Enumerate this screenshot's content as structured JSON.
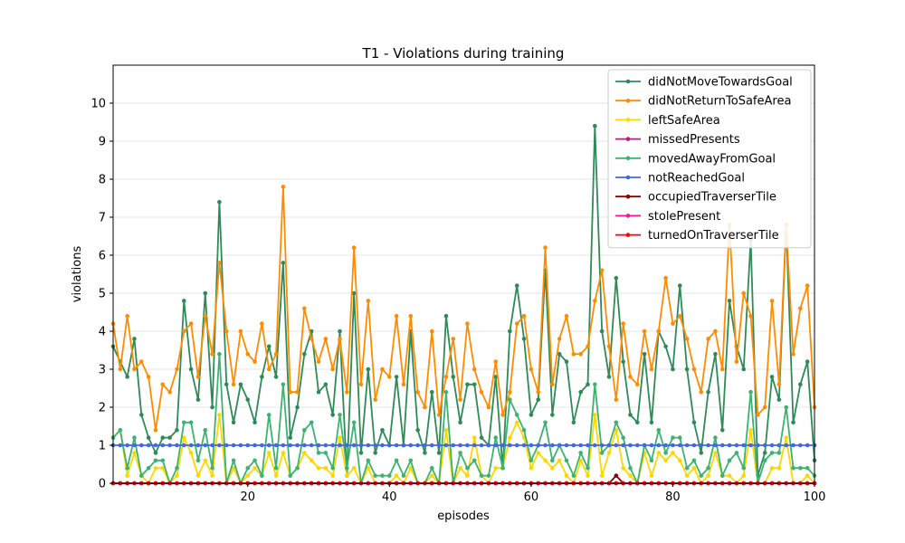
{
  "chart_data": {
    "type": "line",
    "title": "T1 - Violations during training",
    "xlabel": "episodes",
    "ylabel": "violations",
    "xlim": [
      1,
      100
    ],
    "ylim": [
      0,
      11
    ],
    "xticks": [
      20,
      40,
      60,
      80,
      100
    ],
    "yticks": [
      0,
      1,
      2,
      3,
      4,
      5,
      6,
      7,
      8,
      9,
      10
    ],
    "grid": "horizontal",
    "legend_position": "top-right",
    "x": [
      1,
      2,
      3,
      4,
      5,
      6,
      7,
      8,
      9,
      10,
      11,
      12,
      13,
      14,
      15,
      16,
      17,
      18,
      19,
      20,
      21,
      22,
      23,
      24,
      25,
      26,
      27,
      28,
      29,
      30,
      31,
      32,
      33,
      34,
      35,
      36,
      37,
      38,
      39,
      40,
      41,
      42,
      43,
      44,
      45,
      46,
      47,
      48,
      49,
      50,
      51,
      52,
      53,
      54,
      55,
      56,
      57,
      58,
      59,
      60,
      61,
      62,
      63,
      64,
      65,
      66,
      67,
      68,
      69,
      70,
      71,
      72,
      73,
      74,
      75,
      76,
      77,
      78,
      79,
      80,
      81,
      82,
      83,
      84,
      85,
      86,
      87,
      88,
      89,
      90,
      91,
      92,
      93,
      94,
      95,
      96,
      97,
      98,
      99,
      100
    ],
    "series": [
      {
        "name": "didNotMoveTowardsGoal",
        "color": "#2e8b57",
        "values": [
          3.6,
          3.2,
          2.8,
          3.8,
          1.8,
          1.2,
          0.8,
          1.2,
          1.2,
          1.4,
          4.8,
          3.0,
          2.2,
          5.0,
          2.0,
          7.4,
          2.6,
          1.6,
          2.6,
          2.2,
          1.6,
          2.8,
          3.6,
          2.8,
          5.8,
          1.2,
          2.0,
          3.4,
          4.0,
          2.4,
          2.6,
          1.8,
          4.0,
          0.2,
          5.0,
          0.8,
          3.0,
          0.8,
          1.4,
          1.0,
          2.8,
          1.0,
          4.0,
          1.4,
          0.8,
          2.4,
          0.8,
          4.4,
          2.8,
          1.6,
          2.6,
          2.6,
          1.2,
          1.0,
          2.8,
          0.4,
          4.0,
          5.2,
          3.8,
          1.8,
          2.2,
          5.6,
          1.8,
          3.4,
          3.2,
          1.6,
          2.4,
          2.6,
          9.4,
          4.0,
          2.8,
          5.4,
          3.2,
          1.8,
          1.6,
          3.4,
          1.6,
          4.0,
          3.6,
          3.0,
          5.2,
          3.0,
          1.6,
          0.8,
          2.4,
          3.4,
          1.4,
          4.8,
          3.6,
          3.0,
          6.4,
          0.2,
          0.8,
          2.8,
          2.2,
          6.8,
          1.6,
          2.6,
          3.2,
          0.6
        ]
      },
      {
        "name": "didNotReturnToSafeArea",
        "color": "#ff8c00",
        "values": [
          4.2,
          3.0,
          4.4,
          3.0,
          3.2,
          2.8,
          1.4,
          2.6,
          2.4,
          3.0,
          4.0,
          4.2,
          2.8,
          4.4,
          3.4,
          5.8,
          4.0,
          2.6,
          4.0,
          3.4,
          3.2,
          4.2,
          3.0,
          3.4,
          7.8,
          2.4,
          2.4,
          4.6,
          3.8,
          3.2,
          3.8,
          3.0,
          3.8,
          2.4,
          6.2,
          2.6,
          4.8,
          2.2,
          3.0,
          2.8,
          4.4,
          2.6,
          4.4,
          2.4,
          2.0,
          4.0,
          1.8,
          2.8,
          3.8,
          2.2,
          4.2,
          3.0,
          2.4,
          2.0,
          3.2,
          1.8,
          2.4,
          4.2,
          4.4,
          3.0,
          2.4,
          6.2,
          2.6,
          3.8,
          4.4,
          3.4,
          3.4,
          3.6,
          4.8,
          5.6,
          3.6,
          2.2,
          4.2,
          2.8,
          2.6,
          4.0,
          3.0,
          4.0,
          5.4,
          4.2,
          4.4,
          3.8,
          3.0,
          2.4,
          3.8,
          4.0,
          3.0,
          6.8,
          3.2,
          5.0,
          4.4,
          1.8,
          2.0,
          4.8,
          2.6,
          6.8,
          3.4,
          4.6,
          5.2,
          2.0
        ]
      },
      {
        "name": "leftSafeArea",
        "color": "#ffd700",
        "values": [
          1.2,
          1.4,
          0.2,
          0.8,
          0.2,
          0.0,
          0.4,
          0.4,
          0.0,
          0.2,
          1.2,
          0.8,
          0.2,
          0.6,
          0.2,
          1.8,
          0.0,
          0.4,
          0.0,
          0.2,
          0.4,
          0.2,
          0.8,
          0.2,
          0.8,
          0.2,
          0.4,
          0.8,
          0.6,
          0.4,
          0.4,
          0.2,
          1.2,
          0.2,
          0.4,
          0.0,
          0.4,
          0.0,
          0.0,
          0.0,
          0.2,
          0.0,
          0.4,
          0.0,
          0.0,
          0.2,
          0.0,
          1.4,
          0.0,
          0.4,
          0.2,
          1.2,
          0.2,
          0.0,
          0.4,
          0.4,
          1.2,
          1.6,
          1.2,
          0.4,
          0.8,
          0.6,
          0.4,
          0.6,
          0.2,
          0.0,
          0.6,
          0.2,
          1.8,
          0.2,
          0.8,
          1.4,
          0.4,
          0.2,
          0.0,
          0.8,
          0.2,
          0.8,
          0.6,
          0.8,
          0.6,
          0.2,
          0.4,
          0.0,
          0.2,
          0.8,
          0.2,
          0.2,
          0.0,
          0.2,
          1.4,
          0.0,
          0.0,
          0.4,
          0.4,
          1.2,
          0.0,
          0.0,
          0.2,
          0.0
        ]
      },
      {
        "name": "missedPresents",
        "color": "#c71585",
        "values": [
          0,
          0,
          0,
          0,
          0,
          0,
          0,
          0,
          0,
          0,
          0,
          0,
          0,
          0,
          0,
          0,
          0,
          0,
          0,
          0,
          0,
          0,
          0,
          0,
          0,
          0,
          0,
          0,
          0,
          0,
          0,
          0,
          0,
          0,
          0,
          0,
          0,
          0,
          0,
          0,
          0,
          0,
          0,
          0,
          0,
          0,
          0,
          0,
          0,
          0,
          0,
          0,
          0,
          0,
          0,
          0,
          0,
          0,
          0,
          0,
          0,
          0,
          0,
          0,
          0,
          0,
          0,
          0,
          0,
          0,
          0,
          0,
          0,
          0,
          0,
          0,
          0,
          0,
          0,
          0,
          0,
          0,
          0,
          0,
          0,
          0,
          0,
          0,
          0,
          0,
          0,
          0,
          0,
          0,
          0,
          0,
          0,
          0,
          0,
          0
        ]
      },
      {
        "name": "movedAwayFromGoal",
        "color": "#3cb371",
        "values": [
          1.2,
          1.4,
          0.4,
          1.2,
          0.2,
          0.4,
          0.6,
          0.6,
          0.0,
          0.4,
          1.6,
          1.6,
          0.6,
          1.4,
          0.4,
          3.4,
          0.0,
          0.6,
          0.0,
          0.4,
          0.6,
          0.2,
          1.8,
          0.4,
          2.6,
          0.2,
          0.4,
          1.4,
          1.6,
          0.8,
          0.8,
          0.4,
          1.8,
          0.4,
          1.6,
          0.0,
          0.6,
          0.2,
          0.2,
          0.2,
          0.6,
          0.2,
          0.6,
          0.0,
          0.0,
          0.4,
          0.0,
          2.4,
          0.0,
          0.8,
          0.4,
          0.6,
          0.2,
          0.2,
          1.2,
          0.4,
          2.2,
          1.8,
          1.4,
          0.6,
          1.0,
          1.6,
          0.6,
          1.0,
          0.6,
          0.2,
          0.8,
          0.4,
          2.6,
          0.8,
          1.0,
          1.6,
          1.2,
          0.4,
          0.0,
          1.0,
          0.6,
          1.4,
          0.8,
          1.2,
          1.2,
          0.4,
          0.6,
          0.2,
          0.4,
          1.2,
          0.2,
          0.6,
          0.8,
          0.4,
          2.4,
          0.0,
          0.6,
          0.8,
          0.8,
          2.0,
          0.4,
          0.4,
          0.4,
          0.2
        ]
      },
      {
        "name": "notReachedGoal",
        "color": "#4169e1",
        "values": [
          1,
          1,
          1,
          1,
          1,
          1,
          1,
          1,
          1,
          1,
          1,
          1,
          1,
          1,
          1,
          1,
          1,
          1,
          1,
          1,
          1,
          1,
          1,
          1,
          1,
          1,
          1,
          1,
          1,
          1,
          1,
          1,
          1,
          1,
          1,
          1,
          1,
          1,
          1,
          1,
          1,
          1,
          1,
          1,
          1,
          1,
          1,
          1,
          1,
          1,
          1,
          1,
          1,
          1,
          1,
          1,
          1,
          1,
          1,
          1,
          1,
          1,
          1,
          1,
          1,
          1,
          1,
          1,
          1,
          1,
          1,
          1,
          1,
          1,
          1,
          1,
          1,
          1,
          1,
          1,
          1,
          1,
          1,
          1,
          1,
          1,
          1,
          1,
          1,
          1,
          1,
          1,
          1,
          1,
          1,
          1,
          1,
          1,
          1,
          1
        ]
      },
      {
        "name": "occupiedTraverserTile",
        "color": "#8b0000",
        "values": [
          0,
          0,
          0,
          0,
          0,
          0,
          0,
          0,
          0,
          0,
          0,
          0,
          0,
          0,
          0,
          0,
          0,
          0,
          0,
          0,
          0,
          0,
          0,
          0,
          0,
          0,
          0,
          0,
          0,
          0,
          0,
          0,
          0,
          0,
          0,
          0,
          0,
          0,
          0,
          0,
          0,
          0,
          0,
          0,
          0,
          0,
          0,
          0,
          0,
          0,
          0,
          0,
          0,
          0,
          0,
          0,
          0,
          0,
          0,
          0,
          0,
          0,
          0,
          0,
          0,
          0,
          0,
          0,
          0,
          0,
          0,
          0.2,
          0,
          0,
          0,
          0,
          0,
          0,
          0,
          0,
          0,
          0,
          0,
          0,
          0,
          0,
          0,
          0,
          0,
          0,
          0,
          0,
          0,
          0,
          0,
          0,
          0,
          0,
          0,
          0
        ]
      },
      {
        "name": "stolePresent",
        "color": "#ff1493",
        "values": [
          0,
          0,
          0,
          0,
          0,
          0,
          0,
          0,
          0,
          0,
          0,
          0,
          0,
          0,
          0,
          0,
          0,
          0,
          0,
          0,
          0,
          0,
          0,
          0,
          0,
          0,
          0,
          0,
          0,
          0,
          0,
          0,
          0,
          0,
          0,
          0,
          0,
          0,
          0,
          0,
          0,
          0,
          0,
          0,
          0,
          0,
          0,
          0,
          0,
          0,
          0,
          0,
          0,
          0,
          0,
          0,
          0,
          0,
          0,
          0,
          0,
          0,
          0,
          0,
          0,
          0,
          0,
          0,
          0,
          0,
          0,
          0,
          0,
          0,
          0,
          0,
          0,
          0,
          0,
          0,
          0,
          0,
          0,
          0,
          0,
          0,
          0,
          0,
          0,
          0,
          0,
          0,
          0,
          0,
          0,
          0,
          0,
          0,
          0,
          0
        ]
      },
      {
        "name": "turnedOnTraverserTile",
        "color": "#ff0000",
        "values": [
          0,
          0,
          0,
          0,
          0,
          0,
          0,
          0,
          0,
          0,
          0,
          0,
          0,
          0,
          0,
          0,
          0,
          0,
          0,
          0,
          0,
          0,
          0,
          0,
          0,
          0,
          0,
          0,
          0,
          0,
          0,
          0,
          0,
          0,
          0,
          0,
          0,
          0,
          0,
          0,
          0,
          0,
          0,
          0,
          0,
          0,
          0,
          0,
          0,
          0,
          0,
          0,
          0,
          0,
          0,
          0,
          0,
          0,
          0,
          0,
          0,
          0,
          0,
          0,
          0,
          0,
          0,
          0,
          0,
          0,
          0,
          0,
          0,
          0,
          0,
          0,
          0,
          0,
          0,
          0,
          0,
          0,
          0,
          0,
          0,
          0,
          0,
          0,
          0,
          0,
          0,
          0,
          0,
          0,
          0,
          0,
          0,
          0,
          0,
          0
        ]
      }
    ]
  }
}
